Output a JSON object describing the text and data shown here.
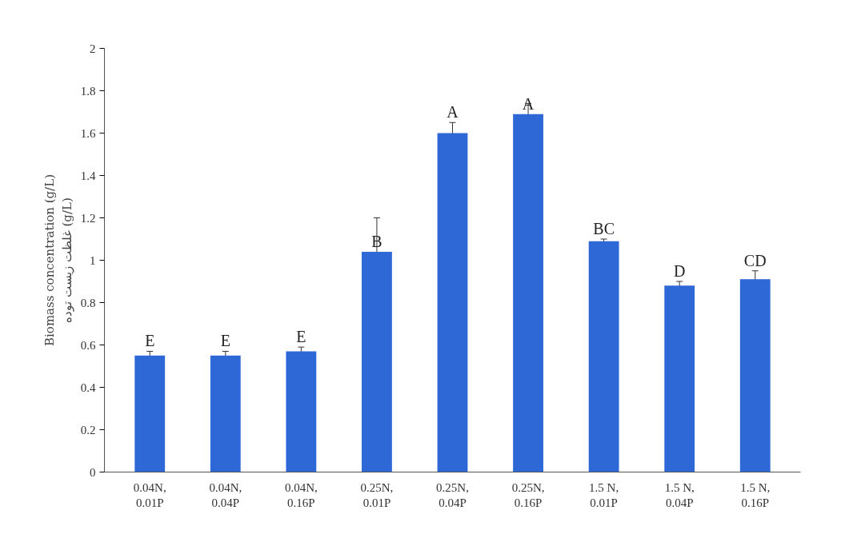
{
  "chart_data": {
    "type": "bar",
    "ylabel": "Biomass concentration (g/L)\nغلظت زیست توده (g/L)",
    "categories": [
      "0.04N,\n0.01P",
      "0.04N,\n0.04P",
      "0.04N,\n0.16P",
      "0.25N,\n0.01P",
      "0.25N,\n0.04P",
      "0.25N,\n0.16P",
      "1.5 N,\n0.01P",
      "1.5 N,\n0.04P",
      "1.5 N,\n0.16P"
    ],
    "values": [
      0.55,
      0.55,
      0.57,
      1.04,
      1.6,
      1.69,
      1.09,
      0.88,
      0.91
    ],
    "errors": [
      0.02,
      0.02,
      0.02,
      0.16,
      0.05,
      0.05,
      0.01,
      0.02,
      0.04
    ],
    "color": "#2e67d6",
    "ylim": [
      0,
      2
    ],
    "yticks": [
      0,
      0.2,
      0.4,
      0.6,
      0.8,
      1,
      1.2,
      1.4,
      1.6,
      1.8,
      2
    ],
    "grid": false,
    "annotations": [
      {
        "text": "E",
        "x": "0.04N,\n0.01P",
        "y": 0.57
      },
      {
        "text": "E",
        "x": "0.04N,\n0.04P",
        "y": 0.57
      },
      {
        "text": "E",
        "x": "0.04N,\n0.16P",
        "y": 0.59
      },
      {
        "text": "B",
        "x": "0.25N,\n0.01P",
        "y": 1.04
      },
      {
        "text": "A",
        "x": "0.25N,\n0.04P",
        "y": 1.65
      },
      {
        "text": "A",
        "x": "0.25N,\n0.16P",
        "y": 1.69
      },
      {
        "text": "BC",
        "x": "1.5 N,\n0.01P",
        "y": 1.1
      },
      {
        "text": "D",
        "x": "1.5 N,\n0.04P",
        "y": 0.9
      },
      {
        "text": "CD",
        "x": "1.5 N,\n0.16P",
        "y": 0.95
      }
    ]
  }
}
